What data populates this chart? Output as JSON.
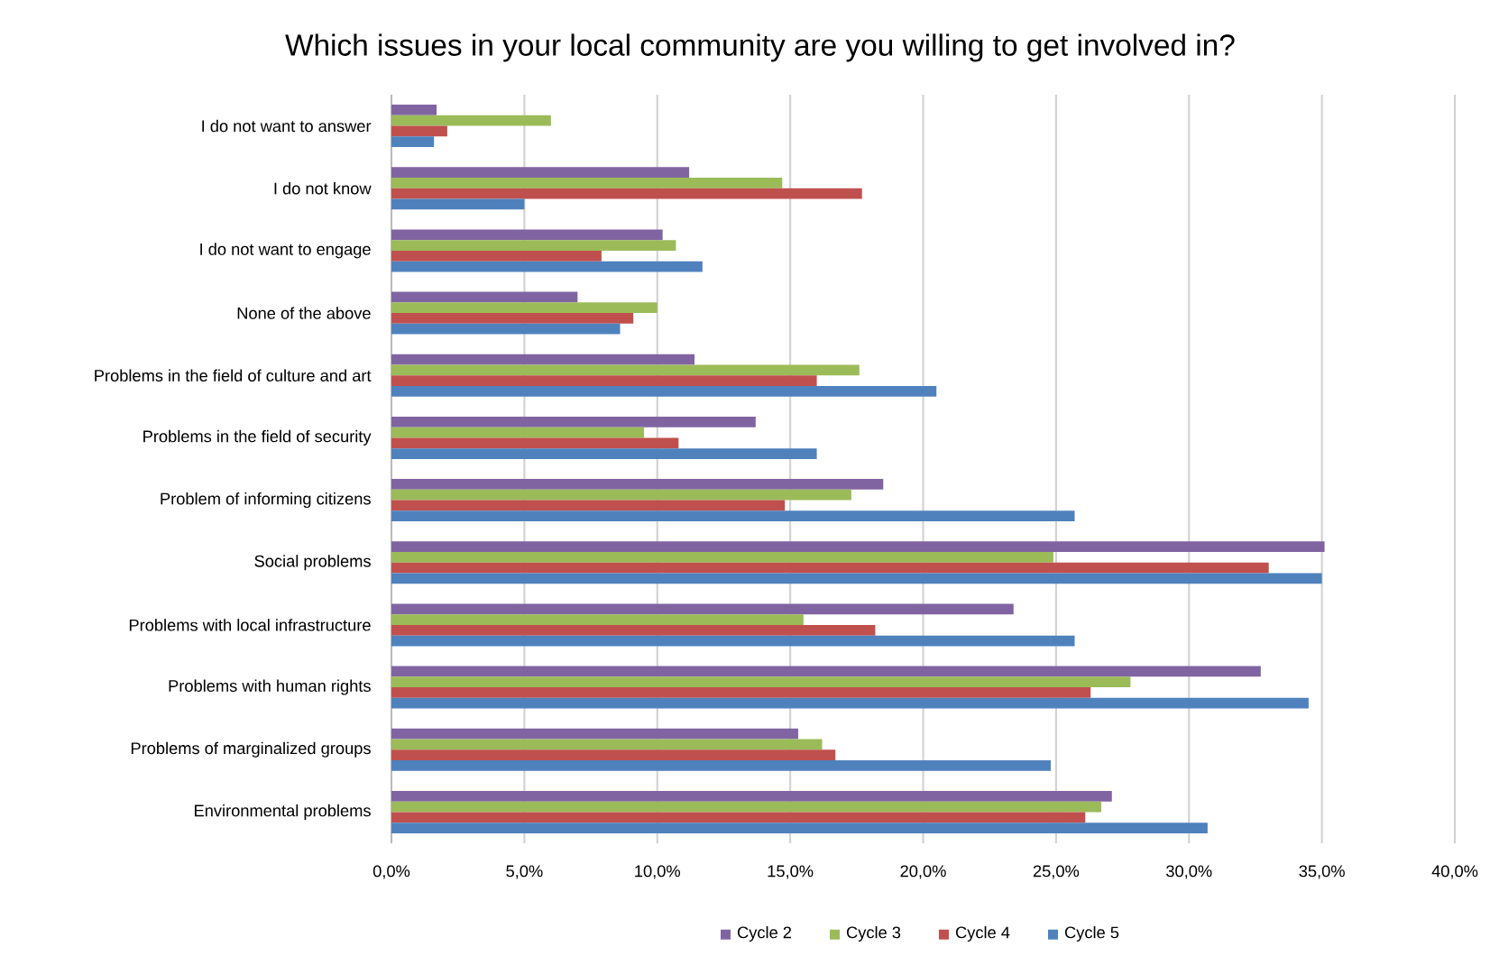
{
  "chart_data": {
    "type": "bar",
    "orientation": "horizontal",
    "title": "Which issues in your local community are you willing to get involved in?",
    "categories": [
      "I do not want to answer",
      "I do not know",
      "I do not want to engage",
      "None of the above",
      "Problems in the field of culture and art",
      "Problems in the field of security",
      "Problem of informing citizens",
      "Social problems",
      "Problems with local infrastructure",
      "Problems with human rights",
      "Problems of marginalized groups",
      "Environmental problems"
    ],
    "series": [
      {
        "name": "Cycle 2",
        "color": "#8064a2",
        "values": [
          1.7,
          11.2,
          10.2,
          7.0,
          11.4,
          13.7,
          18.5,
          35.1,
          23.4,
          32.7,
          15.3,
          27.1
        ]
      },
      {
        "name": "Cycle 3",
        "color": "#9bbb59",
        "values": [
          6.0,
          14.7,
          10.7,
          10.0,
          17.6,
          9.5,
          17.3,
          24.9,
          15.5,
          27.8,
          16.2,
          26.7
        ]
      },
      {
        "name": "Cycle 4",
        "color": "#c0504d",
        "values": [
          2.1,
          17.7,
          7.9,
          9.1,
          16.0,
          10.8,
          14.8,
          33.0,
          18.2,
          26.3,
          16.7,
          26.1
        ]
      },
      {
        "name": "Cycle 5",
        "color": "#4f81bd",
        "values": [
          1.6,
          5.0,
          11.7,
          8.6,
          20.5,
          16.0,
          25.7,
          35.0,
          25.7,
          34.5,
          24.8,
          30.7
        ]
      }
    ],
    "xlim": [
      0,
      40
    ],
    "xticks": [
      {
        "value": 0,
        "label": "0,0%"
      },
      {
        "value": 5,
        "label": "5,0%"
      },
      {
        "value": 10,
        "label": "10,0%"
      },
      {
        "value": 15,
        "label": "15,0%"
      },
      {
        "value": 20,
        "label": "20,0%"
      },
      {
        "value": 25,
        "label": "25,0%"
      },
      {
        "value": 30,
        "label": "30,0%"
      },
      {
        "value": 35,
        "label": "35,0%"
      },
      {
        "value": 40,
        "label": "40,0%"
      }
    ],
    "grid": "x",
    "legend": "bottom"
  }
}
